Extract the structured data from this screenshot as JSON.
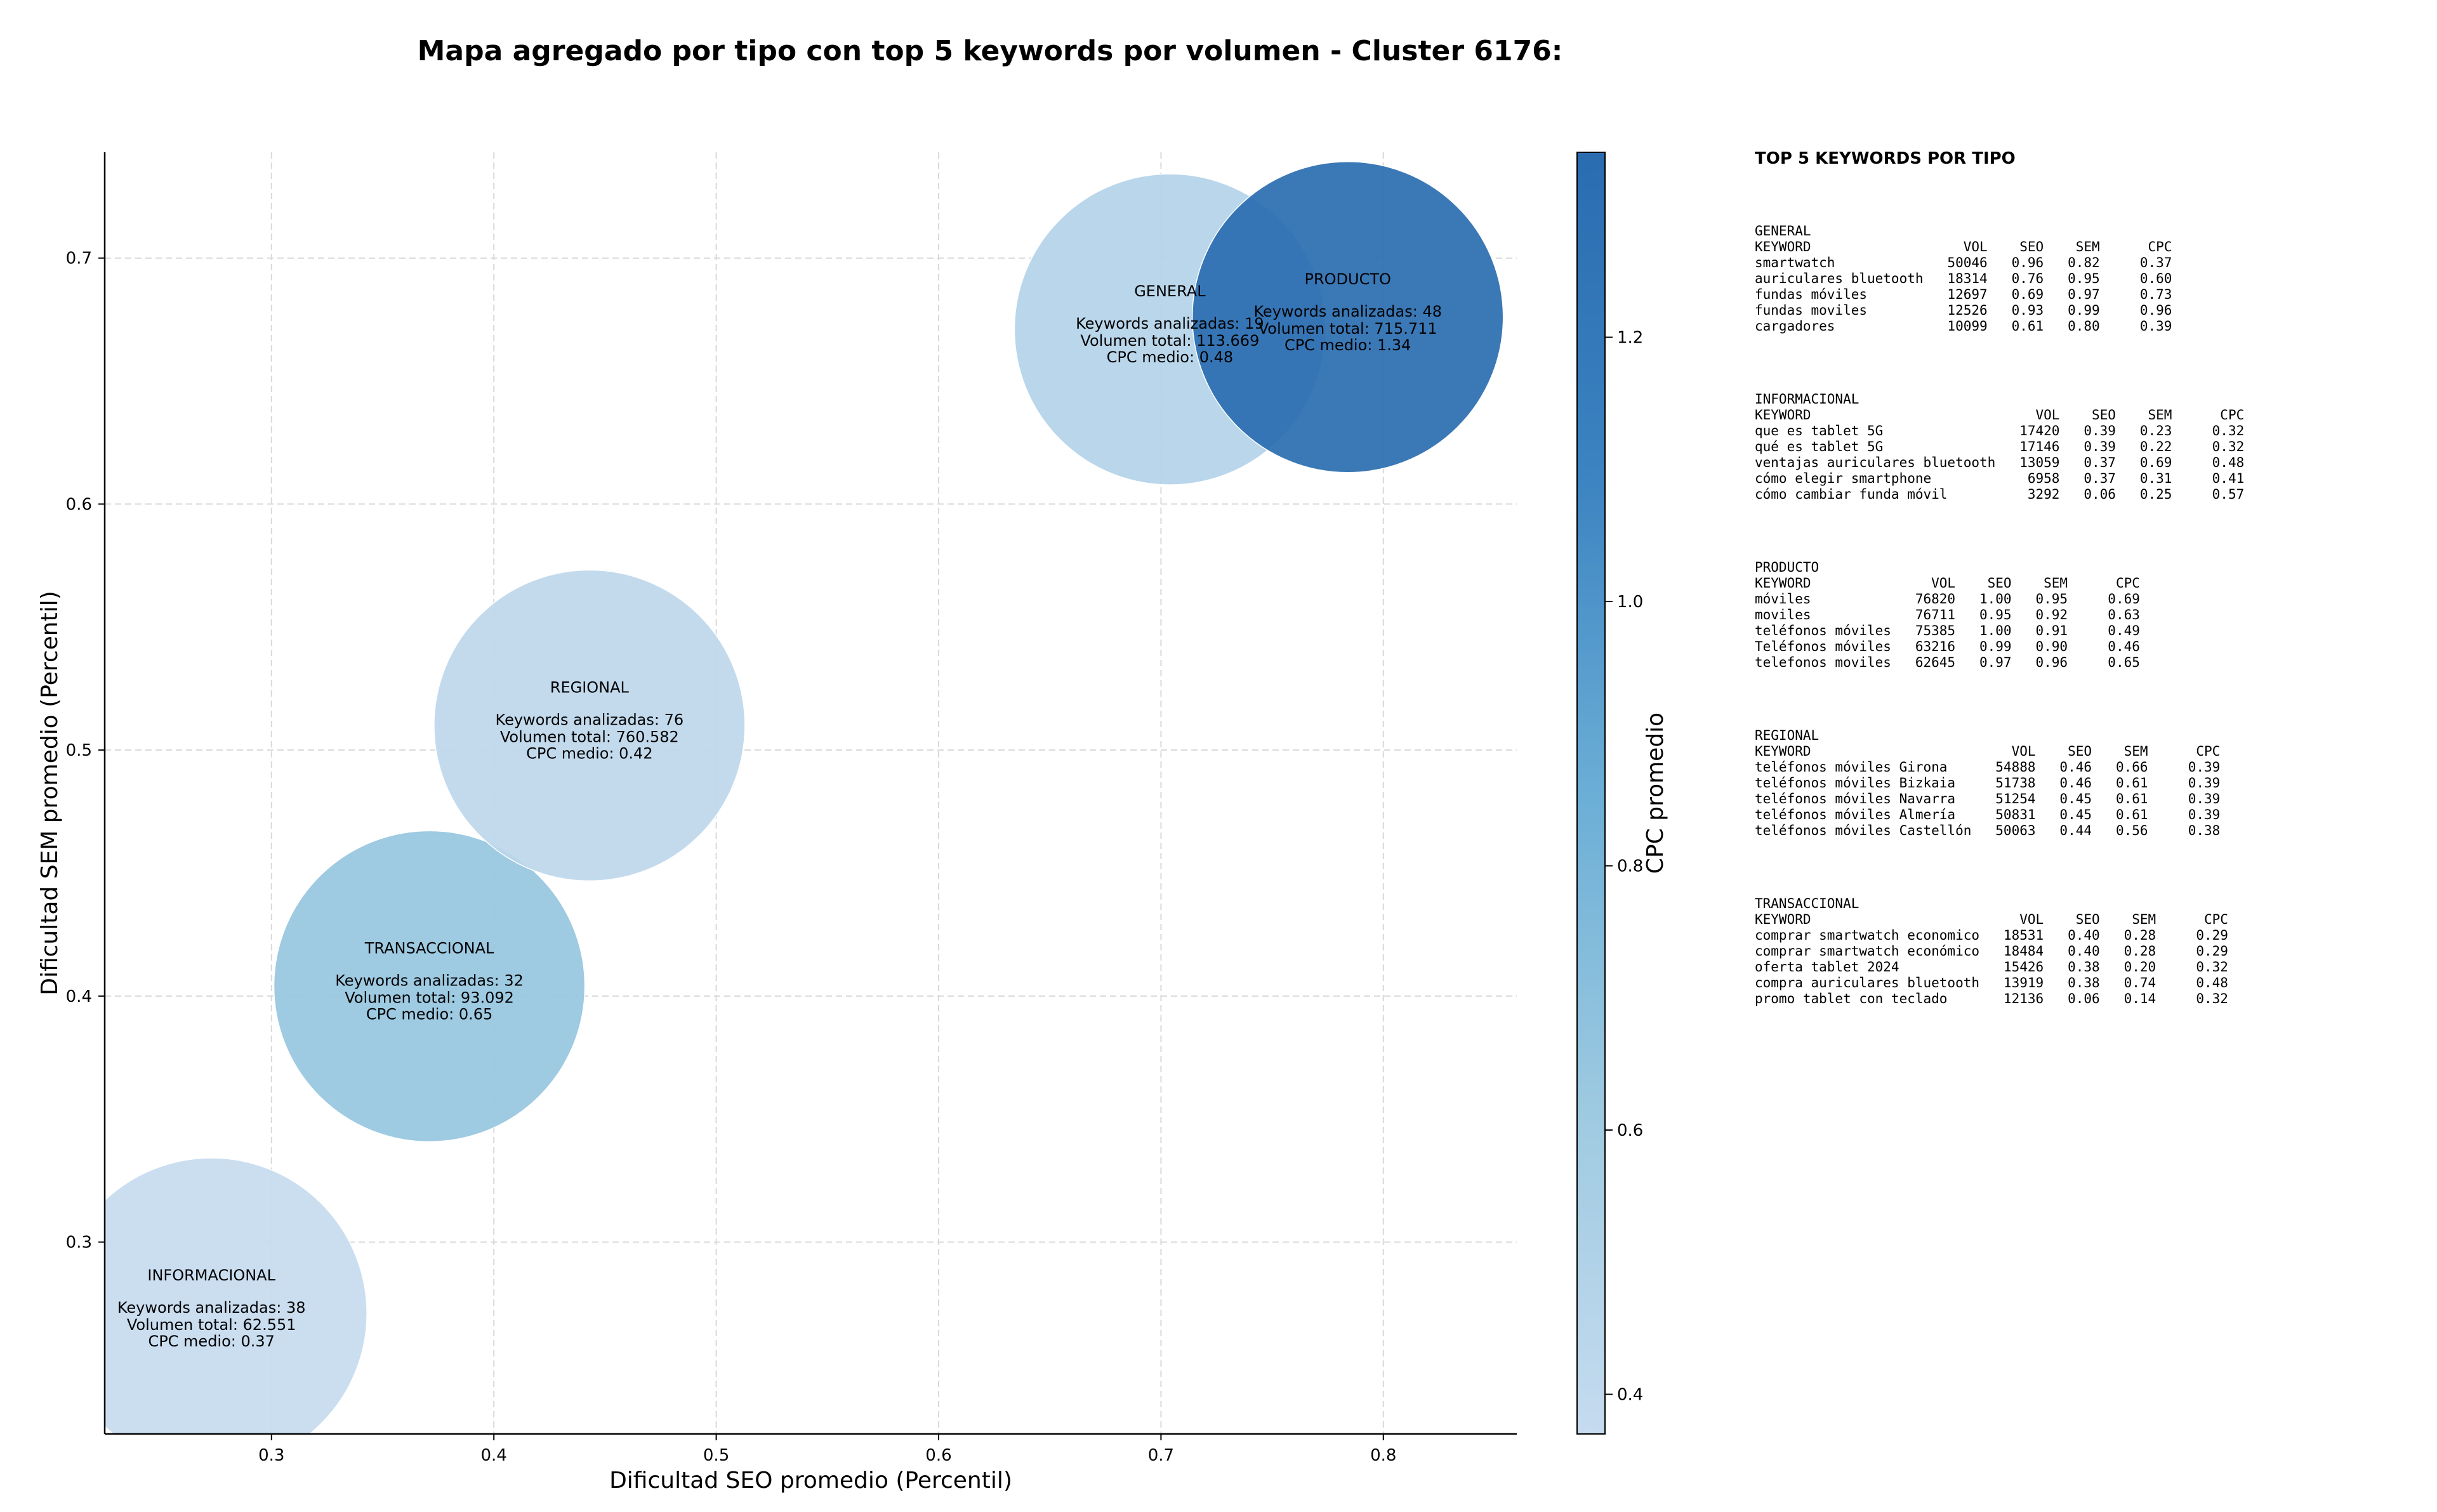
{
  "title": "Mapa agregado por tipo con top 5 keywords por volumen - Cluster 6176:",
  "chart_data": {
    "type": "scatter",
    "title": "Mapa agregado por tipo con top 5 keywords por volumen - Cluster 6176:",
    "xlabel": "Dificultad SEO promedio (Percentil)",
    "ylabel": "Dificultad SEM promedio (Percentil)",
    "xlim": [
      0.225,
      0.86
    ],
    "ylim": [
      0.222,
      0.743
    ],
    "xticks": [
      "0.3",
      "0.4",
      "0.5",
      "0.6",
      "0.7",
      "0.8"
    ],
    "yticks": [
      "0.3",
      "0.4",
      "0.5",
      "0.6",
      "0.7"
    ],
    "grid": true,
    "size_encoding": "Keywords analizadas",
    "color_encoding": "CPC promedio",
    "colorbar": {
      "label": "CPC promedio",
      "range": [
        0.37,
        1.34
      ],
      "ticks": [
        "0.4",
        "0.6",
        "0.8",
        "1.0",
        "1.2"
      ],
      "colors": [
        "#c6dbef",
        "#9ecae1",
        "#6baed6",
        "#3b83c1",
        "#2a6cb0"
      ]
    },
    "points": [
      {
        "name": "INFORMACIONAL",
        "x": 0.273,
        "y": 0.271,
        "keywords_label": "Keywords analizadas: 38",
        "volume_label": "Volumen total: 62.551",
        "cpc_label": "CPC medio: 0.37",
        "cpc": 0.37,
        "keywords": 38
      },
      {
        "name": "TRANSACCIONAL",
        "x": 0.371,
        "y": 0.404,
        "keywords_label": "Keywords analizadas: 32",
        "volume_label": "Volumen total: 93.092",
        "cpc_label": "CPC medio: 0.65",
        "cpc": 0.65,
        "keywords": 32
      },
      {
        "name": "REGIONAL",
        "x": 0.443,
        "y": 0.51,
        "keywords_label": "Keywords analizadas: 76",
        "volume_label": "Volumen total: 760.582",
        "cpc_label": "CPC medio: 0.42",
        "cpc": 0.42,
        "keywords": 76
      },
      {
        "name": "GENERAL",
        "x": 0.704,
        "y": 0.671,
        "keywords_label": "Keywords analizadas: 19",
        "volume_label": "Volumen total: 113.669",
        "cpc_label": "CPC medio: 0.48",
        "cpc": 0.48,
        "keywords": 19
      },
      {
        "name": "PRODUCTO",
        "x": 0.784,
        "y": 0.676,
        "keywords_label": "Keywords analizadas: 48",
        "volume_label": "Volumen total: 715.711",
        "cpc_label": "CPC medio: 1.34",
        "cpc": 1.34,
        "keywords": 48
      }
    ]
  },
  "side_panel": {
    "title": "TOP 5 KEYWORDS POR TIPO",
    "columns": [
      "KEYWORD",
      "VOL",
      "SEO",
      "SEM",
      "CPC"
    ],
    "groups": [
      {
        "name": "GENERAL",
        "rows": [
          [
            "smartwatch",
            "50046",
            "0.96",
            "0.82",
            "0.37"
          ],
          [
            "auriculares bluetooth",
            "18314",
            "0.76",
            "0.95",
            "0.60"
          ],
          [
            "fundas móviles",
            "12697",
            "0.69",
            "0.97",
            "0.73"
          ],
          [
            "fundas moviles",
            "12526",
            "0.93",
            "0.99",
            "0.96"
          ],
          [
            "cargadores",
            "10099",
            "0.61",
            "0.80",
            "0.39"
          ]
        ]
      },
      {
        "name": "INFORMACIONAL",
        "rows": [
          [
            "que es tablet 5G",
            "17420",
            "0.39",
            "0.23",
            "0.32"
          ],
          [
            "qué es tablet 5G",
            "17146",
            "0.39",
            "0.22",
            "0.32"
          ],
          [
            "ventajas auriculares bluetooth",
            "13059",
            "0.37",
            "0.69",
            "0.48"
          ],
          [
            "cómo elegir smartphone",
            "6958",
            "0.37",
            "0.31",
            "0.41"
          ],
          [
            "cómo cambiar funda móvil",
            "3292",
            "0.06",
            "0.25",
            "0.57"
          ]
        ]
      },
      {
        "name": "PRODUCTO",
        "rows": [
          [
            "móviles",
            "76820",
            "1.00",
            "0.95",
            "0.69"
          ],
          [
            "moviles",
            "76711",
            "0.95",
            "0.92",
            "0.63"
          ],
          [
            "teléfonos móviles",
            "75385",
            "1.00",
            "0.91",
            "0.49"
          ],
          [
            "Teléfonos móviles",
            "63216",
            "0.99",
            "0.90",
            "0.46"
          ],
          [
            "telefonos moviles",
            "62645",
            "0.97",
            "0.96",
            "0.65"
          ]
        ]
      },
      {
        "name": "REGIONAL",
        "rows": [
          [
            "teléfonos móviles Girona",
            "54888",
            "0.46",
            "0.66",
            "0.39"
          ],
          [
            "teléfonos móviles Bizkaia",
            "51738",
            "0.46",
            "0.61",
            "0.39"
          ],
          [
            "teléfonos móviles Navarra",
            "51254",
            "0.45",
            "0.61",
            "0.39"
          ],
          [
            "teléfonos móviles Almería",
            "50831",
            "0.45",
            "0.61",
            "0.39"
          ],
          [
            "teléfonos móviles Castellón",
            "50063",
            "0.44",
            "0.56",
            "0.38"
          ]
        ]
      },
      {
        "name": "TRANSACCIONAL",
        "rows": [
          [
            "comprar smartwatch economico",
            "18531",
            "0.40",
            "0.28",
            "0.29"
          ],
          [
            "comprar smartwatch económico",
            "18484",
            "0.40",
            "0.28",
            "0.29"
          ],
          [
            "oferta tablet 2024",
            "15426",
            "0.38",
            "0.20",
            "0.32"
          ],
          [
            "compra auriculares bluetooth",
            "13919",
            "0.38",
            "0.74",
            "0.48"
          ],
          [
            "promo tablet con teclado",
            "12136",
            "0.06",
            "0.14",
            "0.32"
          ]
        ]
      }
    ]
  }
}
